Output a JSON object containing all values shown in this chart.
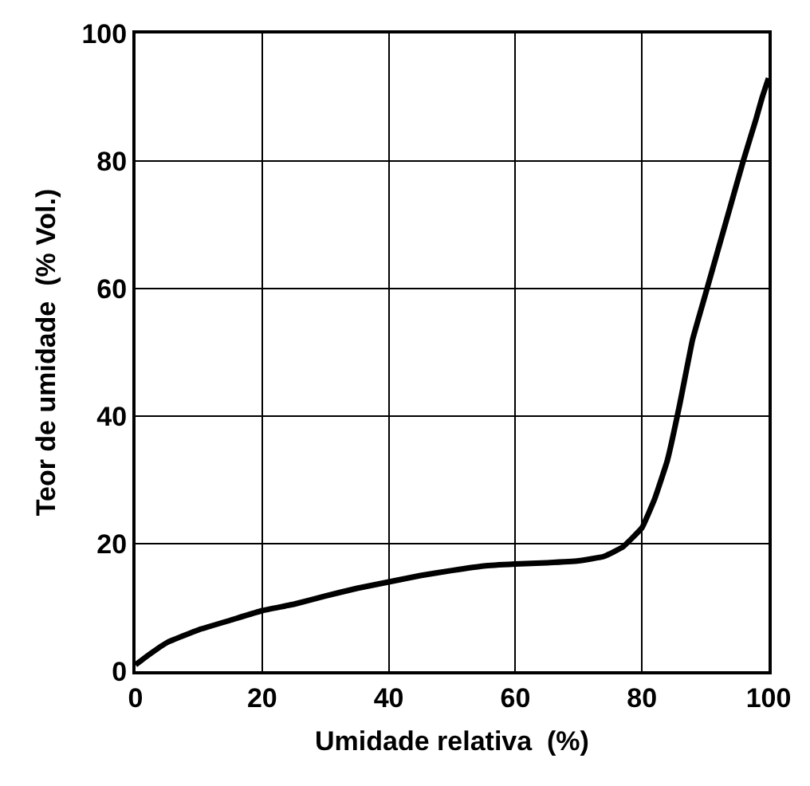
{
  "chart_data": {
    "type": "line",
    "xlabel": "Umidade relativa  (%)",
    "ylabel": "Teor de umidade  (% Vol.)",
    "x": [
      0,
      2,
      5,
      10,
      15,
      20,
      25,
      30,
      35,
      40,
      45,
      50,
      55,
      60,
      65,
      70,
      74,
      77,
      80,
      82,
      84,
      86,
      88,
      90,
      92,
      94,
      96,
      98,
      99,
      100
    ],
    "series": [
      {
        "color": "#000000",
        "values": [
          1,
          2.5,
          4.5,
          6.5,
          8,
          9.5,
          10.5,
          11.8,
          13,
          14,
          15,
          15.8,
          16.5,
          16.8,
          17,
          17.3,
          18,
          19.5,
          22.5,
          27,
          33,
          42,
          52,
          59,
          66,
          73,
          80,
          86.5,
          90,
          93
        ]
      }
    ],
    "xlim": [
      0,
      100
    ],
    "ylim": [
      0,
      100
    ],
    "xticks": [
      0,
      20,
      40,
      60,
      80,
      100
    ],
    "yticks": [
      0,
      20,
      40,
      60,
      80,
      100
    ],
    "grid": true,
    "marker": "none",
    "line_style": "solid"
  }
}
